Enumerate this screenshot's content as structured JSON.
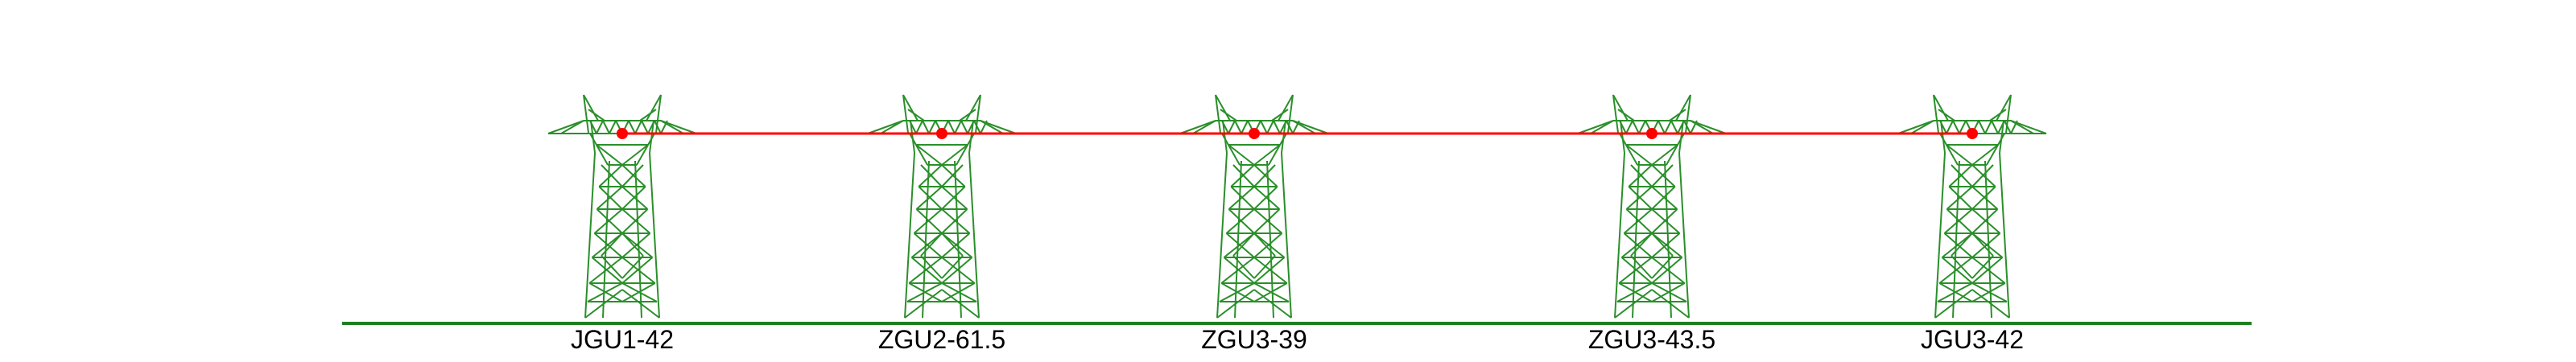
{
  "colors": {
    "ground": "#1e7f1e",
    "tower": "#2a8f2a",
    "line": "#ff0000",
    "point": "#ff0000",
    "label": "#000000"
  },
  "towers": [
    {
      "label": "JGU1-42"
    },
    {
      "label": "ZGU2-61.5"
    },
    {
      "label": "ZGU3-39"
    },
    {
      "label": "ZGU3-43.5"
    },
    {
      "label": "JGU3-42"
    }
  ]
}
